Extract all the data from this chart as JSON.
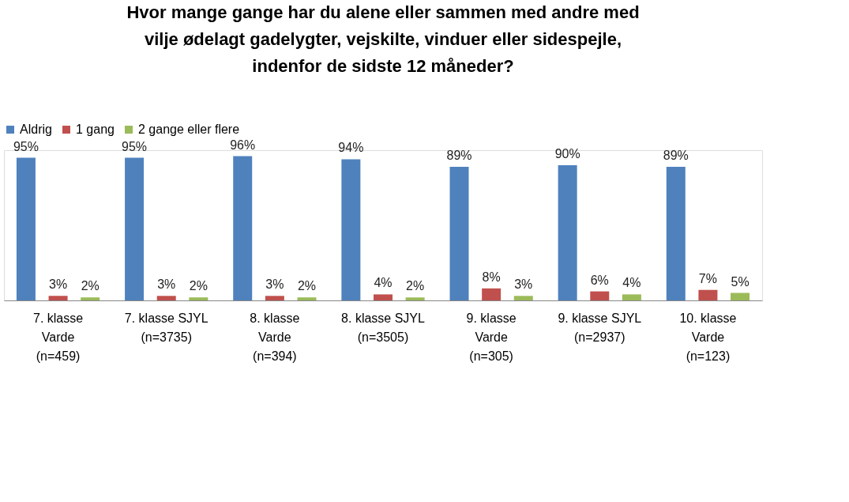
{
  "chart_data": {
    "type": "bar",
    "title": "Hvor mange gange har du alene eller sammen med andre med\nvilje ødelagt gadelygter, vejskilte, vinduer eller sidespejle,\nindenfor de sidste 12 måneder?",
    "categories": [
      "7. klasse\nVarde\n(n=459)",
      "7. klasse SJYL\n(n=3735)",
      "8. klasse\nVarde\n(n=394)",
      "8. klasse SJYL\n(n=3505)",
      "9. klasse\nVarde\n(n=305)",
      "9. klasse SJYL\n(n=2937)",
      "10. klasse\nVarde\n(n=123)"
    ],
    "series": [
      {
        "name": "Aldrig",
        "color": "#4f81bd",
        "values": [
          95,
          95,
          96,
          94,
          89,
          90,
          89
        ],
        "value_labels": [
          "95%",
          "95%",
          "96%",
          "94%",
          "89%",
          "90%",
          "89%"
        ]
      },
      {
        "name": "1 gang",
        "color": "#c0504d",
        "values": [
          3,
          3,
          3,
          4,
          8,
          6,
          7
        ],
        "value_labels": [
          "3%",
          "3%",
          "3%",
          "4%",
          "8%",
          "6%",
          "7%"
        ]
      },
      {
        "name": "2 gange eller flere",
        "color": "#9bbb59",
        "values": [
          2,
          2,
          2,
          2,
          3,
          4,
          5
        ],
        "value_labels": [
          "2%",
          "2%",
          "2%",
          "2%",
          "3%",
          "4%",
          "5%"
        ]
      }
    ],
    "legend": "top",
    "grid": false
  }
}
